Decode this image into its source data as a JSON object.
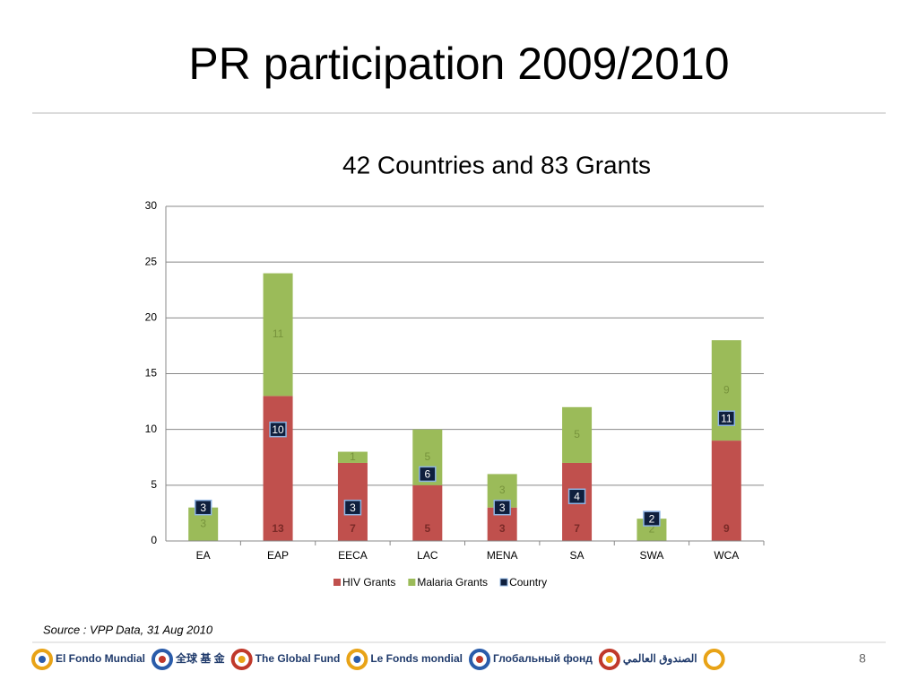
{
  "title": "PR participation 2009/2010",
  "chart_data": {
    "type": "bar",
    "stacked": true,
    "title": "42 Countries and 83 Grants",
    "categories": [
      "EA",
      "EAP",
      "EECA",
      "LAC",
      "MENA",
      "SA",
      "SWA",
      "WCA"
    ],
    "series": [
      {
        "name": "HIV Grants",
        "color": "#c0504d",
        "values": [
          null,
          13,
          7,
          5,
          3,
          7,
          null,
          9
        ]
      },
      {
        "name": "Malaria Grants",
        "color": "#9bbb59",
        "values": [
          3,
          11,
          1,
          5,
          3,
          5,
          2,
          9
        ]
      },
      {
        "name": "Country",
        "color": "#0f1f3d",
        "kind": "marker",
        "values": [
          3,
          10,
          3,
          6,
          3,
          4,
          2,
          11
        ]
      }
    ],
    "ylim": [
      0,
      30
    ],
    "yticks": [
      0,
      5,
      10,
      15,
      20,
      25,
      30
    ],
    "grid": true,
    "legend": "bottom"
  },
  "footer": {
    "source": "Source : VPP Data, 31 Aug 2010",
    "page": "8",
    "logos": [
      "El Fondo Mundial",
      "全球 基 金",
      "The Global Fund",
      "Le Fonds mondial",
      "Глобальный фонд",
      "الصندوق العالمي"
    ]
  }
}
